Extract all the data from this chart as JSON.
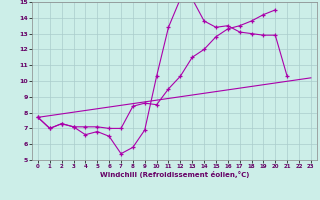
{
  "xlabel": "Windchill (Refroidissement éolien,°C)",
  "background_color": "#cceee8",
  "grid_color": "#aacccc",
  "line_color": "#aa00aa",
  "xlim": [
    -0.5,
    23.5
  ],
  "ylim": [
    5,
    15
  ],
  "xticks": [
    0,
    1,
    2,
    3,
    4,
    5,
    6,
    7,
    8,
    9,
    10,
    11,
    12,
    13,
    14,
    15,
    16,
    17,
    18,
    19,
    20,
    21,
    22,
    23
  ],
  "yticks": [
    5,
    6,
    7,
    8,
    9,
    10,
    11,
    12,
    13,
    14,
    15
  ],
  "hours": [
    0,
    1,
    2,
    3,
    4,
    5,
    6,
    7,
    8,
    9,
    10,
    11,
    12,
    13,
    14,
    15,
    16,
    17,
    18,
    19,
    20,
    21,
    22,
    23
  ],
  "line1": [
    7.7,
    7.0,
    7.3,
    7.1,
    6.6,
    6.8,
    6.5,
    5.4,
    5.8,
    6.9,
    10.3,
    13.4,
    15.2,
    15.2,
    13.8,
    13.4,
    13.5,
    13.1,
    13.0,
    12.9,
    12.9,
    10.3,
    null,
    null
  ],
  "line2": [
    7.7,
    7.0,
    7.3,
    7.1,
    7.1,
    7.1,
    7.0,
    7.0,
    8.4,
    8.6,
    8.5,
    9.5,
    10.3,
    11.5,
    12.0,
    12.8,
    13.3,
    13.5,
    13.8,
    14.2,
    14.5,
    null,
    null,
    null
  ],
  "line3_x": [
    0,
    23
  ],
  "line3_y": [
    7.7,
    10.2
  ]
}
